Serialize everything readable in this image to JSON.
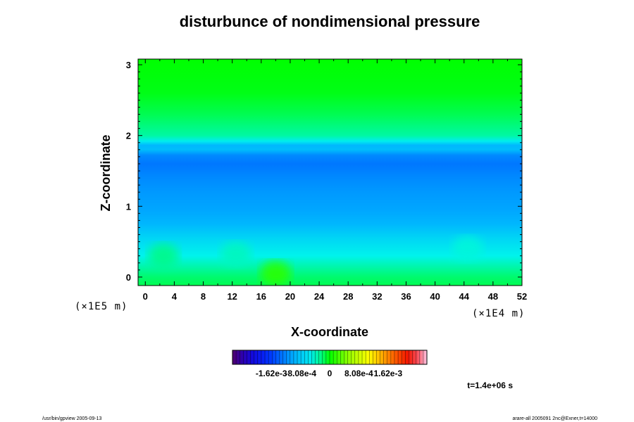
{
  "chart_data": {
    "type": "heatmap",
    "title": "disturbunce of nondimensional pressure",
    "xlabel": "X-coordinate",
    "ylabel": "Z-coordinate",
    "x_unit": "(×1E4 m)",
    "y_unit": "(×1E5 m)",
    "xlim": [
      -1,
      52
    ],
    "ylim": [
      -0.12,
      3.08
    ],
    "x_ticks": [
      "0",
      "4",
      "8",
      "12",
      "16",
      "20",
      "24",
      "28",
      "32",
      "36",
      "40",
      "44",
      "48",
      "52"
    ],
    "y_ticks": [
      "0",
      "1",
      "2",
      "3"
    ],
    "colorbar": {
      "min": -0.0027,
      "max": 0.0027,
      "tick_labels": [
        "-1.62e-3",
        "-8.08e-4",
        "0",
        "8.08e-4",
        "1.62e-3"
      ],
      "tick_values": [
        -0.00162,
        -0.000808,
        0,
        0.000808,
        0.00162
      ]
    },
    "z_profile": [
      {
        "z": -0.12,
        "v": -0.00015
      },
      {
        "z": 0.0,
        "v": -0.0002
      },
      {
        "z": 0.3,
        "v": -0.00045
      },
      {
        "z": 0.55,
        "v": -0.0007
      },
      {
        "z": 0.75,
        "v": -0.00095
      },
      {
        "z": 0.95,
        "v": -0.00105
      },
      {
        "z": 1.2,
        "v": -0.00112
      },
      {
        "z": 1.4,
        "v": -0.0012
      },
      {
        "z": 1.6,
        "v": -0.0013
      },
      {
        "z": 1.72,
        "v": -0.0012
      },
      {
        "z": 1.8,
        "v": -0.0009
      },
      {
        "z": 1.86,
        "v": -0.00095
      },
      {
        "z": 1.92,
        "v": -0.0005
      },
      {
        "z": 2.0,
        "v": -0.0003
      },
      {
        "z": 2.3,
        "v": -0.00015
      },
      {
        "z": 2.6,
        "v": -4e-05
      },
      {
        "z": 3.08,
        "v": 0
      }
    ],
    "blobs": [
      {
        "x": 2.5,
        "z": 0.3,
        "v": -0.00025
      },
      {
        "x": 12.5,
        "z": 0.32,
        "v": -0.00035
      },
      {
        "x": 18,
        "z": 0.05,
        "v": 0.00015
      },
      {
        "x": 44.5,
        "z": 0.4,
        "v": -0.0004
      }
    ]
  },
  "footer": {
    "time_label": "t=1.4e+06 s",
    "left_note": "/usr/bin/gpview 2005-09-13",
    "right_note": "arare-all 2005091 2nc@Exner,t=14000"
  }
}
